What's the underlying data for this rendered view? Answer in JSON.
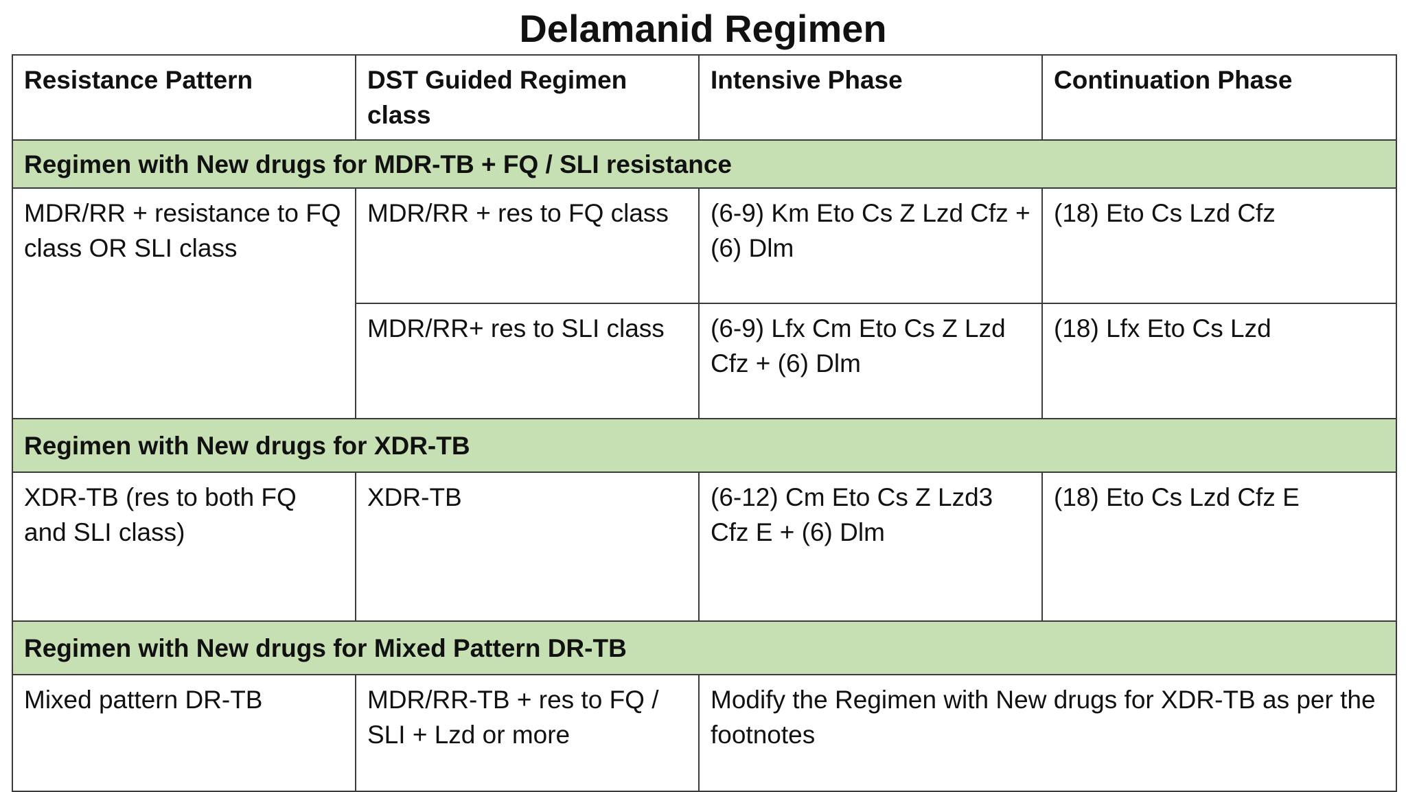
{
  "title": "Delamanid Regimen",
  "headers": [
    "Resistance Pattern",
    "DST Guided Regimen class",
    "Intensive Phase",
    "Continuation Phase"
  ],
  "sections": [
    {
      "heading": "Regimen with New drugs for MDR-TB + FQ / SLI resistance",
      "pattern": "MDR/RR + resistance to FQ class OR SLI class",
      "rows": [
        {
          "class": "MDR/RR + res to FQ class",
          "intensive": "(6-9) Km Eto Cs Z Lzd Cfz + (6) Dlm",
          "continuation": "(18) Eto Cs Lzd Cfz"
        },
        {
          "class": "MDR/RR+ res to SLI class",
          "intensive": "(6-9) Lfx Cm Eto Cs Z Lzd Cfz + (6) Dlm",
          "continuation": "(18) Lfx Eto Cs Lzd"
        }
      ]
    },
    {
      "heading": "Regimen with New drugs for XDR-TB",
      "pattern": "XDR-TB (res to both FQ and SLI class)",
      "rows": [
        {
          "class": "XDR-TB",
          "intensive": "(6-12) Cm Eto Cs Z Lzd3 Cfz E + (6) Dlm",
          "continuation": "(18) Eto Cs Lzd Cfz E"
        }
      ]
    },
    {
      "heading": "Regimen with New drugs for Mixed Pattern DR-TB",
      "pattern": "Mixed pattern DR-TB",
      "rows": [
        {
          "class": "MDR/RR-TB + res to FQ / SLI + Lzd or more",
          "combined": "Modify the Regimen with New drugs for XDR-TB as per the footnotes"
        }
      ]
    }
  ],
  "colors": {
    "section_fill": "#c6e0b4",
    "border": "#3a3a3a"
  }
}
